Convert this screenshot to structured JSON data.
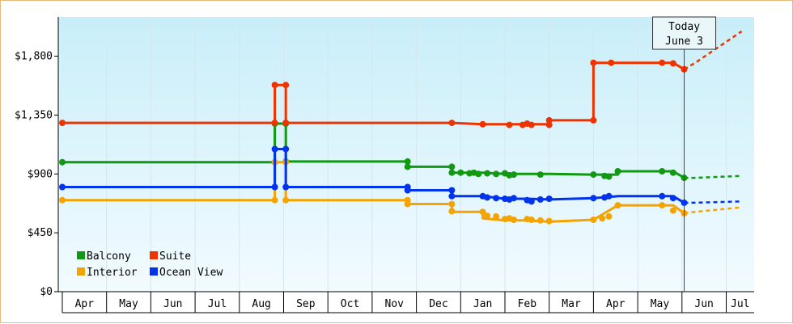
{
  "chart_data": {
    "type": "line",
    "title": "",
    "xlabel": "",
    "ylabel": "",
    "ylim": [
      0,
      2100
    ],
    "y_ticks": [
      {
        "value": 0,
        "label": "$0"
      },
      {
        "value": 450,
        "label": "$450"
      },
      {
        "value": 900,
        "label": "$900"
      },
      {
        "value": 1350,
        "label": "$1,350"
      },
      {
        "value": 1800,
        "label": "$1,800"
      }
    ],
    "months": [
      "Apr",
      "May",
      "Jun",
      "Jul",
      "Aug",
      "Sep",
      "Oct",
      "Nov",
      "Dec",
      "Jan",
      "Feb",
      "Mar",
      "Apr",
      "May",
      "Jun",
      "Jul"
    ],
    "x_unit": "months since start of first Apr",
    "today": {
      "line1": "Today",
      "line2": "June 3",
      "x": 14.05
    },
    "legend": [
      {
        "series": "Balcony",
        "label": "Balcony"
      },
      {
        "series": "Suite",
        "label": "Suite"
      },
      {
        "series": "Interior",
        "label": "Interior"
      },
      {
        "series": "Ocean View",
        "label": "Ocean View"
      }
    ],
    "series": [
      {
        "name": "Balcony",
        "color": "#119911",
        "points": [
          [
            0,
            990
          ],
          [
            4.8,
            990
          ],
          [
            4.8,
            1285
          ],
          [
            5.05,
            1285
          ],
          [
            5.05,
            995
          ],
          [
            7.8,
            995
          ],
          [
            7.8,
            955
          ],
          [
            8.8,
            955
          ],
          [
            8.8,
            910
          ],
          [
            9.5,
            910
          ],
          [
            10.0,
            900
          ],
          [
            10.5,
            900
          ],
          [
            11.0,
            900
          ],
          [
            12.0,
            895
          ],
          [
            12.55,
            895
          ],
          [
            12.55,
            920
          ],
          [
            13.8,
            920
          ],
          [
            14.05,
            870
          ]
        ],
        "markers": [
          [
            0,
            990
          ],
          [
            4.8,
            990
          ],
          [
            4.8,
            1285
          ],
          [
            5.05,
            1285
          ],
          [
            5.05,
            995
          ],
          [
            7.8,
            995
          ],
          [
            7.8,
            955
          ],
          [
            8.8,
            955
          ],
          [
            8.8,
            910
          ],
          [
            9.0,
            910
          ],
          [
            9.2,
            905
          ],
          [
            9.3,
            910
          ],
          [
            9.4,
            900
          ],
          [
            9.6,
            905
          ],
          [
            9.8,
            900
          ],
          [
            10.0,
            905
          ],
          [
            10.1,
            890
          ],
          [
            10.2,
            895
          ],
          [
            10.8,
            895
          ],
          [
            12.0,
            895
          ],
          [
            12.25,
            885
          ],
          [
            12.35,
            880
          ],
          [
            12.55,
            920
          ],
          [
            13.55,
            920
          ],
          [
            13.8,
            910
          ],
          [
            14.05,
            870
          ]
        ],
        "forecast": [
          [
            14.05,
            870
          ],
          [
            14.3,
            870
          ],
          [
            15.35,
            885
          ]
        ]
      },
      {
        "name": "Suite",
        "color": "#ee3300",
        "points": [
          [
            0,
            1290
          ],
          [
            4.8,
            1290
          ],
          [
            4.8,
            1580
          ],
          [
            5.05,
            1580
          ],
          [
            5.05,
            1290
          ],
          [
            8.8,
            1290
          ],
          [
            9.5,
            1280
          ],
          [
            10.5,
            1280
          ],
          [
            11.0,
            1280
          ],
          [
            11.0,
            1310
          ],
          [
            12.0,
            1310
          ],
          [
            12.0,
            1750
          ],
          [
            13.8,
            1750
          ],
          [
            14.05,
            1700
          ]
        ],
        "markers": [
          [
            0,
            1290
          ],
          [
            4.8,
            1290
          ],
          [
            4.8,
            1580
          ],
          [
            5.05,
            1580
          ],
          [
            5.05,
            1290
          ],
          [
            8.8,
            1290
          ],
          [
            9.5,
            1280
          ],
          [
            10.1,
            1275
          ],
          [
            10.4,
            1275
          ],
          [
            10.5,
            1285
          ],
          [
            10.6,
            1275
          ],
          [
            11.0,
            1275
          ],
          [
            11.0,
            1310
          ],
          [
            12.0,
            1310
          ],
          [
            12.0,
            1750
          ],
          [
            12.4,
            1750
          ],
          [
            13.55,
            1750
          ],
          [
            13.8,
            1745
          ],
          [
            14.05,
            1700
          ]
        ],
        "forecast": [
          [
            14.05,
            1700
          ],
          [
            14.3,
            1750
          ],
          [
            15.35,
            1990
          ]
        ]
      },
      {
        "name": "Interior",
        "color": "#f5a300",
        "points": [
          [
            0,
            700
          ],
          [
            4.8,
            700
          ],
          [
            4.8,
            990
          ],
          [
            5.05,
            990
          ],
          [
            5.05,
            700
          ],
          [
            7.8,
            700
          ],
          [
            7.8,
            670
          ],
          [
            8.8,
            670
          ],
          [
            8.8,
            610
          ],
          [
            9.5,
            610
          ],
          [
            9.5,
            560
          ],
          [
            10.0,
            545
          ],
          [
            10.5,
            545
          ],
          [
            11.0,
            535
          ],
          [
            12.0,
            550
          ],
          [
            12.55,
            660
          ],
          [
            13.8,
            660
          ],
          [
            14.05,
            600
          ]
        ],
        "markers": [
          [
            0,
            700
          ],
          [
            4.8,
            700
          ],
          [
            4.8,
            990
          ],
          [
            5.05,
            990
          ],
          [
            5.05,
            700
          ],
          [
            7.8,
            700
          ],
          [
            7.8,
            670
          ],
          [
            8.8,
            670
          ],
          [
            8.8,
            615
          ],
          [
            9.5,
            610
          ],
          [
            9.6,
            580
          ],
          [
            9.8,
            575
          ],
          [
            10.0,
            555
          ],
          [
            10.1,
            560
          ],
          [
            10.2,
            550
          ],
          [
            10.5,
            555
          ],
          [
            10.6,
            550
          ],
          [
            10.8,
            545
          ],
          [
            11.0,
            540
          ],
          [
            12.0,
            550
          ],
          [
            12.2,
            560
          ],
          [
            12.35,
            575
          ],
          [
            12.55,
            660
          ],
          [
            13.55,
            660
          ],
          [
            13.8,
            620
          ],
          [
            14.05,
            600
          ]
        ],
        "forecast": [
          [
            14.05,
            600
          ],
          [
            14.3,
            610
          ],
          [
            15.35,
            645
          ]
        ]
      },
      {
        "name": "Ocean View",
        "color": "#0033ee",
        "points": [
          [
            0,
            800
          ],
          [
            4.8,
            800
          ],
          [
            4.8,
            1090
          ],
          [
            5.05,
            1090
          ],
          [
            5.05,
            800
          ],
          [
            7.8,
            800
          ],
          [
            7.8,
            775
          ],
          [
            8.8,
            775
          ],
          [
            8.8,
            730
          ],
          [
            9.5,
            730
          ],
          [
            10.0,
            710
          ],
          [
            10.5,
            710
          ],
          [
            11.0,
            705
          ],
          [
            12.0,
            715
          ],
          [
            12.55,
            730
          ],
          [
            13.8,
            730
          ],
          [
            14.05,
            680
          ]
        ],
        "markers": [
          [
            0,
            800
          ],
          [
            4.8,
            800
          ],
          [
            4.8,
            1090
          ],
          [
            5.05,
            1090
          ],
          [
            5.05,
            800
          ],
          [
            7.8,
            800
          ],
          [
            7.8,
            775
          ],
          [
            8.8,
            775
          ],
          [
            8.8,
            730
          ],
          [
            9.5,
            730
          ],
          [
            9.6,
            720
          ],
          [
            9.8,
            715
          ],
          [
            10.0,
            710
          ],
          [
            10.1,
            705
          ],
          [
            10.2,
            715
          ],
          [
            10.5,
            700
          ],
          [
            10.6,
            690
          ],
          [
            10.8,
            705
          ],
          [
            11.0,
            710
          ],
          [
            12.0,
            715
          ],
          [
            12.25,
            720
          ],
          [
            12.35,
            730
          ],
          [
            13.55,
            730
          ],
          [
            13.8,
            715
          ],
          [
            14.05,
            680
          ]
        ],
        "forecast": [
          [
            14.05,
            680
          ],
          [
            14.3,
            680
          ],
          [
            15.35,
            690
          ]
        ]
      }
    ]
  }
}
